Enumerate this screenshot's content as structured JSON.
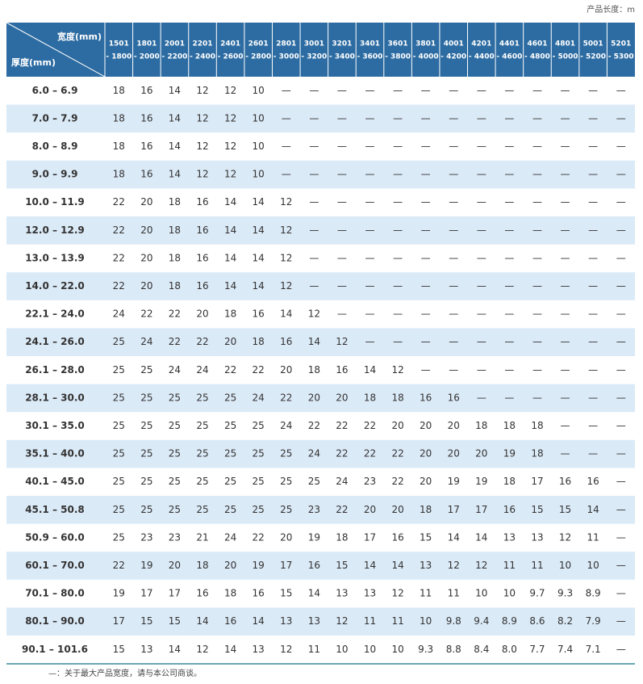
{
  "note": "产品长度：m",
  "table": {
    "col_header_title": "宽度(mm)",
    "row_header_title": "厚度(mm)",
    "columns": [
      [
        "1501",
        "- 1800"
      ],
      [
        "1801",
        "- 2000"
      ],
      [
        "2001",
        "- 2200"
      ],
      [
        "2201",
        "- 2400"
      ],
      [
        "2401",
        "- 2600"
      ],
      [
        "2601",
        "- 2800"
      ],
      [
        "2801",
        "- 3000"
      ],
      [
        "3001",
        "- 3200"
      ],
      [
        "3201",
        "- 3400"
      ],
      [
        "3401",
        "- 3600"
      ],
      [
        "3601",
        "- 3800"
      ],
      [
        "3801",
        "- 4000"
      ],
      [
        "4001",
        "- 4200"
      ],
      [
        "4201",
        "- 4400"
      ],
      [
        "4401",
        "- 4600"
      ],
      [
        "4601",
        "- 4800"
      ],
      [
        "4801",
        "- 5000"
      ],
      [
        "5001",
        "- 5200"
      ],
      [
        "5201",
        "- 5300"
      ]
    ],
    "rows": [
      {
        "label": "6.0 – 6.9",
        "cells": [
          "18",
          "16",
          "14",
          "12",
          "12",
          "10",
          "—",
          "—",
          "—",
          "—",
          "—",
          "—",
          "—",
          "—",
          "—",
          "—",
          "—",
          "—",
          "—"
        ]
      },
      {
        "label": "7.0 – 7.9",
        "cells": [
          "18",
          "16",
          "14",
          "12",
          "12",
          "10",
          "—",
          "—",
          "—",
          "—",
          "—",
          "—",
          "—",
          "—",
          "—",
          "—",
          "—",
          "—",
          "—"
        ]
      },
      {
        "label": "8.0 – 8.9",
        "cells": [
          "18",
          "16",
          "14",
          "12",
          "12",
          "10",
          "—",
          "—",
          "—",
          "—",
          "—",
          "—",
          "—",
          "—",
          "—",
          "—",
          "—",
          "—",
          "—"
        ]
      },
      {
        "label": "9.0 – 9.9",
        "cells": [
          "18",
          "16",
          "14",
          "12",
          "12",
          "10",
          "—",
          "—",
          "—",
          "—",
          "—",
          "—",
          "—",
          "—",
          "—",
          "—",
          "—",
          "—",
          "—"
        ]
      },
      {
        "label": "10.0 – 11.9",
        "cells": [
          "22",
          "20",
          "18",
          "16",
          "14",
          "14",
          "12",
          "—",
          "—",
          "—",
          "—",
          "—",
          "—",
          "—",
          "—",
          "—",
          "—",
          "—",
          "—"
        ]
      },
      {
        "label": "12.0 – 12.9",
        "cells": [
          "22",
          "20",
          "18",
          "16",
          "14",
          "14",
          "12",
          "—",
          "—",
          "—",
          "—",
          "—",
          "—",
          "—",
          "—",
          "—",
          "—",
          "—",
          "—"
        ]
      },
      {
        "label": "13.0 – 13.9",
        "cells": [
          "22",
          "20",
          "18",
          "16",
          "14",
          "14",
          "12",
          "—",
          "—",
          "—",
          "—",
          "—",
          "—",
          "—",
          "—",
          "—",
          "—",
          "—",
          "—"
        ]
      },
      {
        "label": "14.0 – 22.0",
        "cells": [
          "22",
          "20",
          "18",
          "16",
          "14",
          "14",
          "12",
          "—",
          "—",
          "—",
          "—",
          "—",
          "—",
          "—",
          "—",
          "—",
          "—",
          "—",
          "—"
        ]
      },
      {
        "label": "22.1 – 24.0",
        "cells": [
          "24",
          "22",
          "22",
          "20",
          "18",
          "16",
          "14",
          "12",
          "—",
          "—",
          "—",
          "—",
          "—",
          "—",
          "—",
          "—",
          "—",
          "—",
          "—"
        ]
      },
      {
        "label": "24.1 – 26.0",
        "cells": [
          "25",
          "24",
          "22",
          "22",
          "20",
          "18",
          "16",
          "14",
          "12",
          "—",
          "—",
          "—",
          "—",
          "—",
          "—",
          "—",
          "—",
          "—",
          "—"
        ]
      },
      {
        "label": "26.1 – 28.0",
        "cells": [
          "25",
          "25",
          "24",
          "24",
          "22",
          "22",
          "20",
          "18",
          "16",
          "14",
          "12",
          "—",
          "—",
          "—",
          "—",
          "—",
          "—",
          "—",
          "—"
        ]
      },
      {
        "label": "28.1 – 30.0",
        "cells": [
          "25",
          "25",
          "25",
          "25",
          "25",
          "24",
          "22",
          "20",
          "20",
          "18",
          "18",
          "16",
          "16",
          "—",
          "—",
          "—",
          "—",
          "—",
          "—"
        ]
      },
      {
        "label": "30.1 – 35.0",
        "cells": [
          "25",
          "25",
          "25",
          "25",
          "25",
          "25",
          "24",
          "22",
          "22",
          "22",
          "20",
          "20",
          "20",
          "18",
          "18",
          "18",
          "—",
          "—",
          "—"
        ]
      },
      {
        "label": "35.1 – 40.0",
        "cells": [
          "25",
          "25",
          "25",
          "25",
          "25",
          "25",
          "25",
          "24",
          "22",
          "22",
          "22",
          "20",
          "20",
          "20",
          "19",
          "18",
          "—",
          "—",
          "—"
        ]
      },
      {
        "label": "40.1 – 45.0",
        "cells": [
          "25",
          "25",
          "25",
          "25",
          "25",
          "25",
          "25",
          "25",
          "24",
          "23",
          "22",
          "20",
          "19",
          "19",
          "18",
          "17",
          "16",
          "16",
          "—"
        ]
      },
      {
        "label": "45.1 – 50.8",
        "cells": [
          "25",
          "25",
          "25",
          "25",
          "25",
          "25",
          "25",
          "23",
          "22",
          "20",
          "20",
          "18",
          "17",
          "17",
          "16",
          "15",
          "15",
          "14",
          "—"
        ]
      },
      {
        "label": "50.9 – 60.0",
        "cells": [
          "25",
          "23",
          "23",
          "21",
          "24",
          "22",
          "20",
          "19",
          "18",
          "17",
          "16",
          "15",
          "14",
          "14",
          "13",
          "13",
          "12",
          "11",
          "—"
        ]
      },
      {
        "label": "60.1 – 70.0",
        "cells": [
          "22",
          "19",
          "20",
          "18",
          "20",
          "19",
          "17",
          "16",
          "15",
          "14",
          "14",
          "13",
          "12",
          "12",
          "11",
          "11",
          "10",
          "10",
          "—"
        ]
      },
      {
        "label": "70.1 – 80.0",
        "cells": [
          "19",
          "17",
          "17",
          "16",
          "18",
          "16",
          "15",
          "14",
          "13",
          "13",
          "12",
          "11",
          "11",
          "10",
          "10",
          "9.7",
          "9.3",
          "8.9",
          "—"
        ]
      },
      {
        "label": "80.1 – 90.0",
        "cells": [
          "17",
          "15",
          "15",
          "14",
          "16",
          "14",
          "13",
          "13",
          "12",
          "11",
          "11",
          "10",
          "9.8",
          "9.4",
          "8.9",
          "8.6",
          "8.2",
          "7.9",
          "—"
        ]
      },
      {
        "label": "90.1 – 101.6",
        "cells": [
          "15",
          "13",
          "14",
          "12",
          "14",
          "13",
          "12",
          "11",
          "10",
          "10",
          "10",
          "9.3",
          "8.8",
          "8.4",
          "8.0",
          "7.7",
          "7.4",
          "7.1",
          "—"
        ]
      }
    ]
  },
  "footnote": "—：关于最大产品宽度，请与本公司商谈。"
}
